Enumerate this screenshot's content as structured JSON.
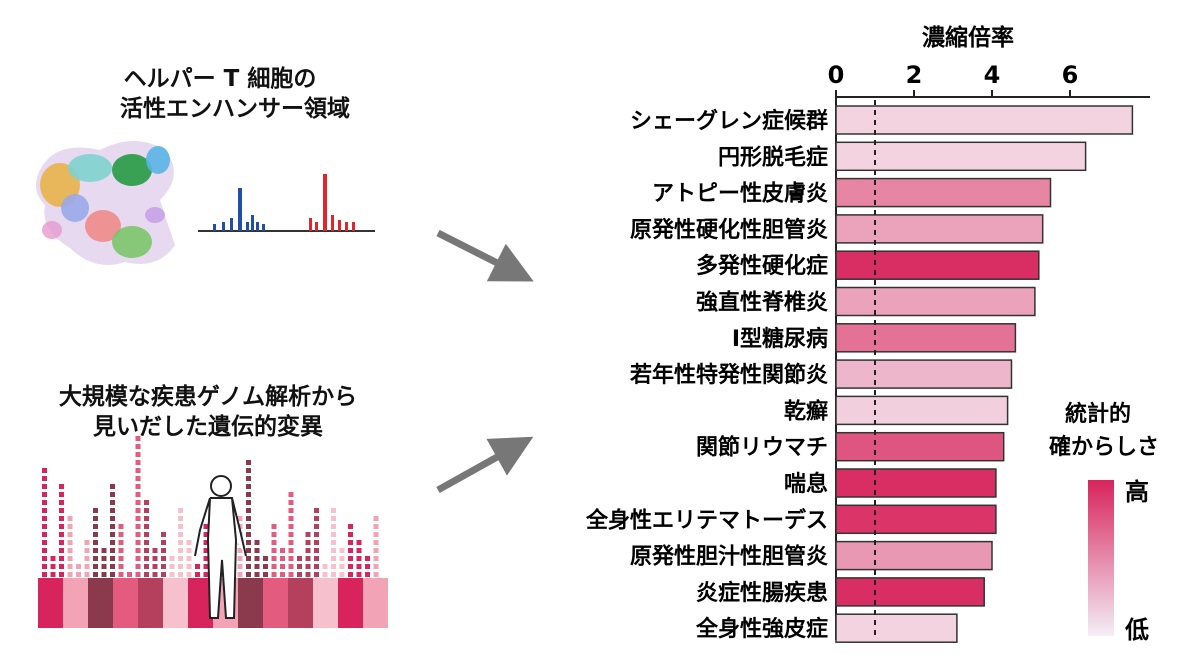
{
  "left_panel": {
    "top_title_line1": "ヘルパー T 細胞の",
    "top_title_line2": "活性エンハンサー領域",
    "bottom_title_line1": "大規模な疾患ゲノム解析から",
    "bottom_title_line2": "見いだした遺伝的変異"
  },
  "legend": {
    "title_line1": "統計的",
    "title_line2": "確からしさ",
    "high_label": "高",
    "low_label": "低",
    "color_high": "#d8245c",
    "color_low": "#f4eef7"
  },
  "colors": {
    "bar_high": "#d8245c",
    "bar_low": "#f5e6ee",
    "arrow": "#777777",
    "blue_peaks": "#1f4fa8",
    "red_peaks": "#e0262a"
  },
  "icons": {
    "umap": "umap-cluster-icon",
    "arrow": "arrow-icon",
    "person": "human-body-icon",
    "manhattan": "manhattan-plot-icon"
  },
  "chart_data": {
    "type": "bar",
    "orientation": "horizontal",
    "xlabel": "濃縮倍率",
    "xticks": [
      0,
      2,
      4,
      6
    ],
    "xlim": [
      0,
      8
    ],
    "reference_line": 1,
    "categories": [
      "シェーグレン症候群",
      "円形脱毛症",
      "アトピー性皮膚炎",
      "原発性硬化性胆管炎",
      "多発性硬化症",
      "強直性脊椎炎",
      "I型糖尿病",
      "若年性特発性関節炎",
      "乾癬",
      "関節リウマチ",
      "喘息",
      "全身性エリテマトーデス",
      "原発性胆汁性胆管炎",
      "炎症性腸疾患",
      "全身性強皮症"
    ],
    "values": [
      7.6,
      6.4,
      5.5,
      5.3,
      5.2,
      5.1,
      4.6,
      4.5,
      4.4,
      4.3,
      4.1,
      4.1,
      4.0,
      3.8,
      3.1
    ],
    "significance": [
      0.1,
      0.1,
      0.5,
      0.35,
      0.95,
      0.35,
      0.6,
      0.25,
      0.12,
      0.75,
      0.95,
      0.92,
      0.4,
      0.95,
      0.1
    ]
  }
}
